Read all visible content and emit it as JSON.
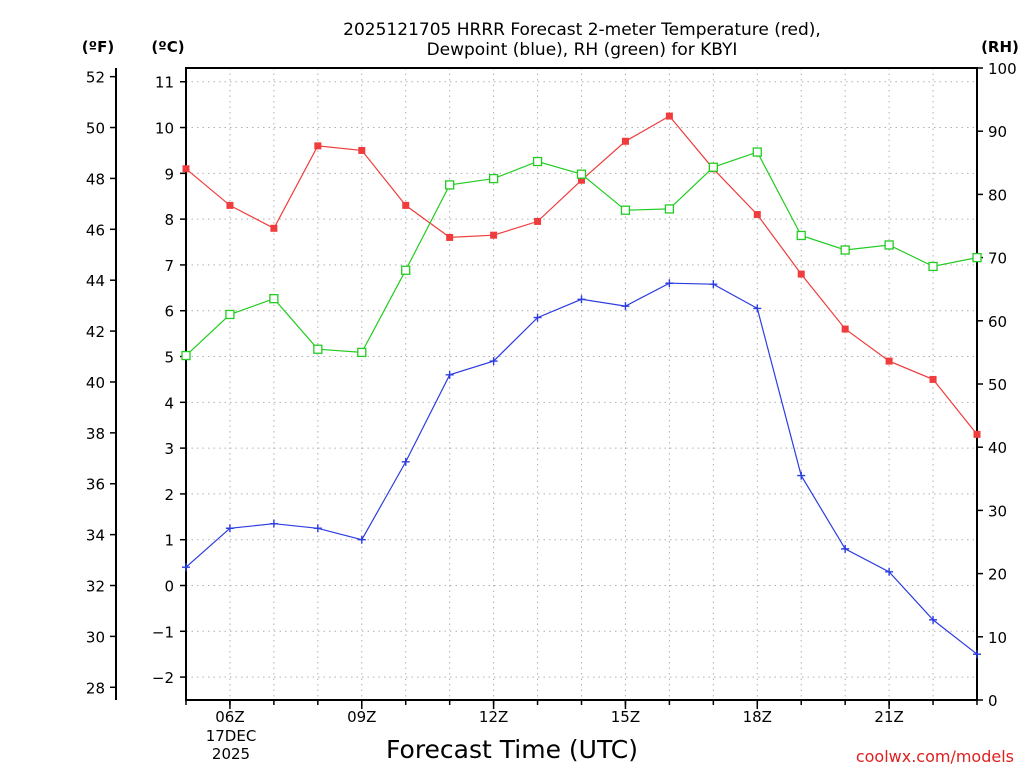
{
  "chart_data": {
    "type": "line",
    "title": [
      "2025121705 HRRR Forecast 2-meter Temperature (red),",
      "Dewpoint (blue), RH (green) for KBYI"
    ],
    "xlabel": "Forecast Time (UTC)",
    "units": {
      "fahrenheit": "(ºF)",
      "celsius": "(ºC)",
      "rh": "(RH)"
    },
    "x_hours": [
      5,
      6,
      7,
      8,
      9,
      10,
      11,
      12,
      13,
      14,
      15,
      16,
      17,
      18,
      19,
      20,
      21,
      22,
      23
    ],
    "xlim": [
      5,
      23
    ],
    "x_ticks": [
      {
        "hour": 6,
        "label": "06Z"
      },
      {
        "hour": 9,
        "label": "09Z"
      },
      {
        "hour": 12,
        "label": "12Z"
      },
      {
        "hour": 15,
        "label": "15Z"
      },
      {
        "hour": 18,
        "label": "18Z"
      },
      {
        "hour": 21,
        "label": "21Z"
      }
    ],
    "date_label": [
      "17DEC",
      "2025"
    ],
    "celsius_ticks": [
      -2,
      -1,
      0,
      1,
      2,
      3,
      4,
      5,
      6,
      7,
      8,
      9,
      10,
      11
    ],
    "celsius_tick_labels": [
      "−2",
      "−1",
      "0",
      "1",
      "2",
      "3",
      "4",
      "5",
      "6",
      "7",
      "8",
      "9",
      "10",
      "11"
    ],
    "fahrenheit_ticks": [
      28,
      30,
      32,
      34,
      36,
      38,
      40,
      42,
      44,
      46,
      48,
      50,
      52
    ],
    "rh_ticks": [
      0,
      10,
      20,
      30,
      40,
      50,
      60,
      70,
      80,
      90,
      100
    ],
    "ylim_celsius": [
      -2.5,
      11.3
    ],
    "ylim_rh": [
      0,
      100
    ],
    "series": [
      {
        "name": "Temperature",
        "axis": "celsius",
        "color": "#f03c3c",
        "marker": "filled-square",
        "values": [
          9.1,
          8.3,
          7.8,
          9.6,
          9.5,
          8.3,
          7.6,
          7.65,
          7.95,
          8.85,
          9.7,
          10.25,
          9.1,
          8.1,
          6.8,
          5.6,
          4.9,
          4.5,
          3.3
        ]
      },
      {
        "name": "Dewpoint",
        "axis": "celsius",
        "color": "#2c3ce0",
        "marker": "plus",
        "values": [
          0.4,
          1.25,
          1.35,
          1.25,
          1.0,
          2.7,
          4.6,
          4.9,
          5.85,
          6.25,
          6.1,
          6.6,
          6.58,
          6.05,
          2.4,
          0.8,
          0.3,
          -0.75,
          -1.5
        ]
      },
      {
        "name": "RH",
        "axis": "rh",
        "color": "#22cc22",
        "marker": "open-square",
        "values": [
          54.5,
          61,
          63.5,
          55.5,
          55,
          68,
          81.5,
          82.5,
          85.2,
          83.2,
          77.5,
          77.7,
          84.3,
          86.7,
          73.5,
          71.2,
          72,
          68.6,
          70
        ]
      }
    ]
  },
  "watermark": "coolwx.com/models"
}
